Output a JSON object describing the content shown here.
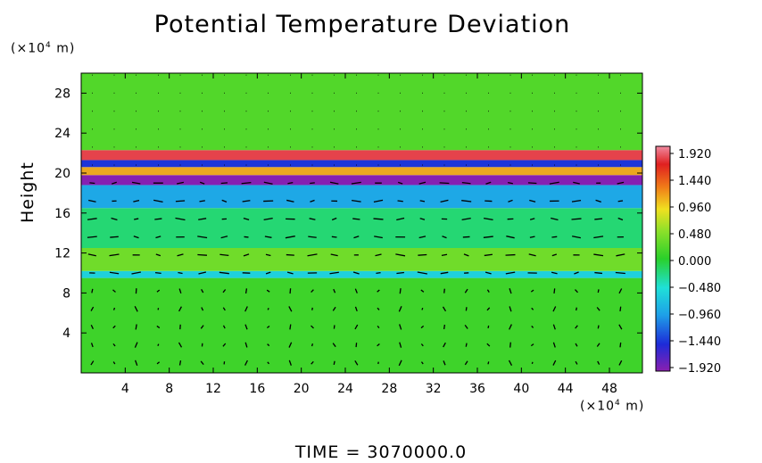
{
  "chart_data": {
    "type": "heatmap",
    "title": "Potential Temperature Deviation",
    "ylabel": "Height",
    "y_unit": "(×10",
    "y_unit_exp": "4",
    "y_unit_tail": " m)",
    "x_unit": "(×10",
    "x_unit_exp": "4",
    "x_unit_tail": " m)",
    "xlim": [
      0,
      51
    ],
    "ylim": [
      0,
      30
    ],
    "x_ticks": [
      4,
      8,
      12,
      16,
      20,
      24,
      28,
      32,
      36,
      40,
      44,
      48
    ],
    "y_ticks": [
      4,
      8,
      12,
      16,
      20,
      24,
      28
    ],
    "colorbar": {
      "range": [
        -1.92,
        1.92
      ],
      "labels": [
        "1.920",
        "1.440",
        "0.960",
        "0.480",
        "0.000",
        "−0.480",
        "−0.960",
        "−1.440",
        "−1.920"
      ]
    },
    "bands": [
      {
        "y0": 0,
        "y1": 9.5,
        "value": 0.1
      },
      {
        "y0": 9.5,
        "y1": 10.2,
        "value": -0.6
      },
      {
        "y0": 10.2,
        "y1": 12.5,
        "value": 0.35
      },
      {
        "y0": 12.5,
        "y1": 16.5,
        "value": -0.2
      },
      {
        "y0": 16.5,
        "y1": 18.8,
        "value": -0.9
      },
      {
        "y0": 18.8,
        "y1": 19.8,
        "value": -1.9
      },
      {
        "y0": 19.8,
        "y1": 20.6,
        "value": 1.1
      },
      {
        "y0": 20.6,
        "y1": 21.3,
        "value": -1.4
      },
      {
        "y0": 21.3,
        "y1": 22.3,
        "value": 1.6
      },
      {
        "y0": 22.3,
        "y1": 30,
        "value": 0.2
      }
    ],
    "vector_grid": {
      "dx": 2,
      "dy": 1.8
    }
  },
  "footer": {
    "time_label": "TIME  =  3070000.0"
  }
}
